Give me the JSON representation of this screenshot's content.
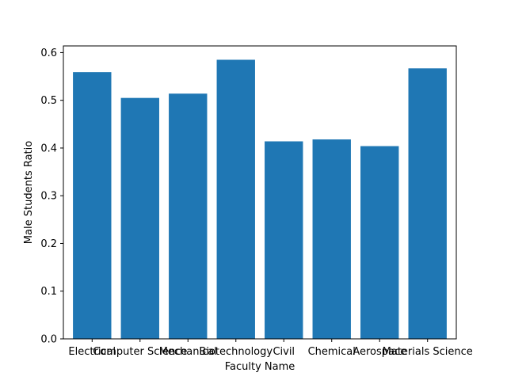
{
  "chart_data": {
    "type": "bar",
    "title": "",
    "xlabel": "Faculty Name",
    "ylabel": "Male Students Ratio",
    "categories": [
      "Electrical",
      "Computer Science",
      "Mechanical",
      "Biotechnology",
      "Civil",
      "Chemical",
      "Aerospace",
      "Materials Science"
    ],
    "values": [
      0.559,
      0.505,
      0.514,
      0.585,
      0.414,
      0.418,
      0.404,
      0.567
    ],
    "ylim": [
      0,
      0.614
    ],
    "yticks": [
      0.0,
      0.1,
      0.2,
      0.3,
      0.4,
      0.5,
      0.6
    ],
    "ytick_labels": [
      "0.0",
      "0.1",
      "0.2",
      "0.3",
      "0.4",
      "0.5",
      "0.6"
    ],
    "bar_color": "#1f77b4",
    "grid": false,
    "legend": "none"
  }
}
